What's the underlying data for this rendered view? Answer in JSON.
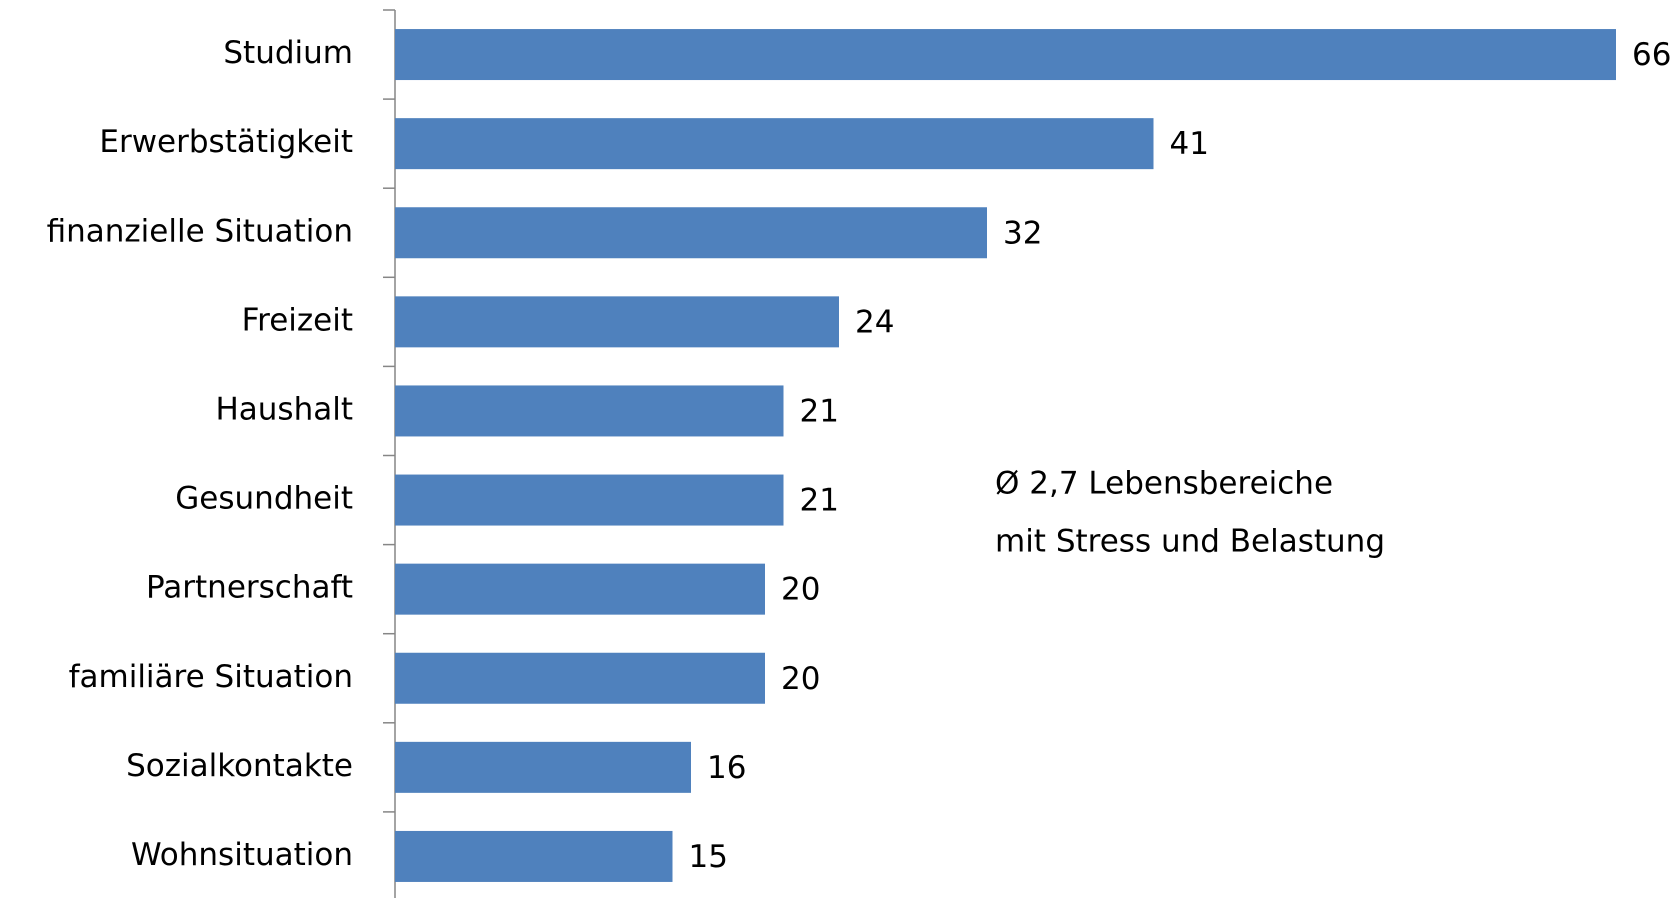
{
  "chart_data": {
    "type": "bar",
    "orientation": "horizontal",
    "categories": [
      "Studium",
      "Erwerbstätigkeit",
      "finanzielle Situation",
      "Freizeit",
      "Haushalt",
      "Gesundheit",
      "Partnerschaft",
      "familiäre Situation",
      "Sozialkontakte",
      "Wohnsituation"
    ],
    "values": [
      66,
      41,
      32,
      24,
      21,
      21,
      20,
      20,
      16,
      15
    ],
    "color": "#4f81bd",
    "annotation": [
      "Ø 2,7 Lebensbereiche",
      "mit Stress und Belastung"
    ]
  }
}
